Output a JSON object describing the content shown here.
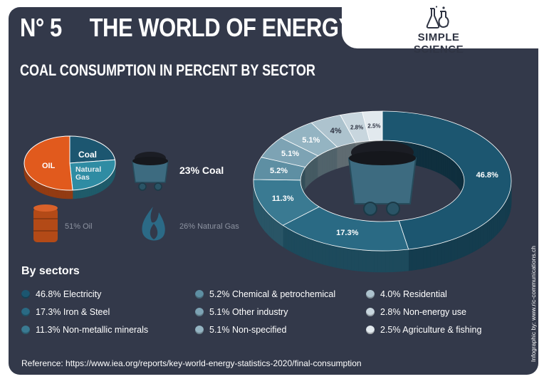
{
  "header": {
    "issue": "N° 5",
    "title": "THE WORLD OF ENERGY",
    "subtitle": "COAL CONSUMPTION IN PERCENT BY SECTOR",
    "brand": "SIMPLE SCIENCE",
    "brand_icon": "flask-icon"
  },
  "energy_mix": {
    "coal_label": "Coal",
    "oil_label": "OIL",
    "gas_label": "Natural Gas",
    "coal_text": "23% Coal",
    "oil_text": "51% Oil",
    "gas_text": "26% Natural Gas"
  },
  "sectors_heading": "By sectors",
  "legend": [
    {
      "text": "46.8% Electricity",
      "color": "#1c5670"
    },
    {
      "text": "17.3% Iron & Steel",
      "color": "#2a6a84"
    },
    {
      "text": "11.3% Non-metallic minerals",
      "color": "#3a7a92"
    },
    {
      "text": "5.2% Chemical & petrochemical",
      "color": "#5e8fa3"
    },
    {
      "text": "5.1% Other industry",
      "color": "#7da3b4"
    },
    {
      "text": "5.1% Non-specified",
      "color": "#94b4c2"
    },
    {
      "text": "4.0% Residential",
      "color": "#adc3ce"
    },
    {
      "text": "2.8% Non-energy use",
      "color": "#c8d6de"
    },
    {
      "text": "2.5% Agriculture & fishing",
      "color": "#e2e9ee"
    }
  ],
  "reference": "Reference: https://www.iea.org/reports/key-world-energy-statistics-2020/final-consumption",
  "credit": "Infographic by: www.ric-communications.ch",
  "chart_data": [
    {
      "type": "pie",
      "categories": [
        "Oil",
        "Coal",
        "Natural Gas"
      ],
      "values": [
        51,
        23,
        26
      ],
      "colors": [
        "#e15a1d",
        "#1c5670",
        "#2f8ca3"
      ]
    },
    {
      "type": "pie",
      "title": "COAL CONSUMPTION IN PERCENT BY SECTOR",
      "categories": [
        "Electricity",
        "Iron & Steel",
        "Non-metallic minerals",
        "Chemical & petrochemical",
        "Other industry",
        "Non-specified",
        "Residential",
        "Non-energy use",
        "Agriculture & fishing"
      ],
      "values": [
        46.8,
        17.3,
        11.3,
        5.2,
        5.1,
        5.1,
        4.0,
        2.8,
        2.5
      ],
      "data_labels": [
        "46.8%",
        "17.3%",
        "11.3%",
        "5.2%",
        "5.1%",
        "5.1%",
        "4%",
        "2.8%",
        "2.5%"
      ],
      "colors": [
        "#1c5670",
        "#2a6a84",
        "#3a7a92",
        "#5e8fa3",
        "#7da3b4",
        "#94b4c2",
        "#adc3ce",
        "#c8d6de",
        "#e2e9ee"
      ]
    }
  ]
}
